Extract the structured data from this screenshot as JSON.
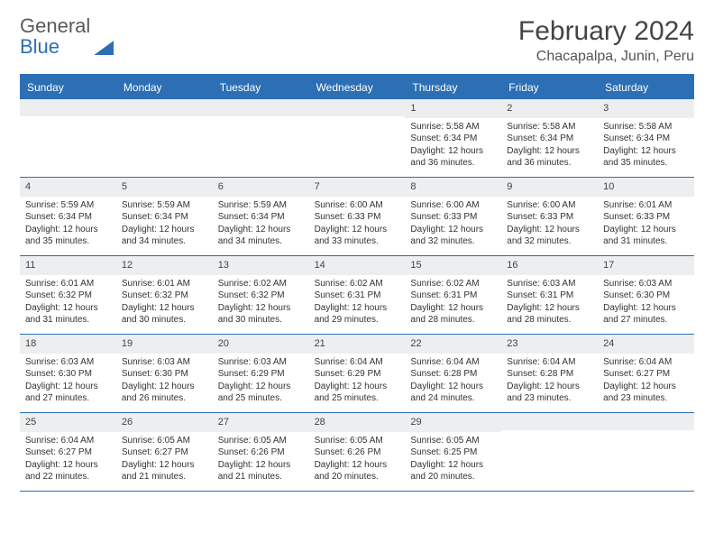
{
  "brand": {
    "part1": "General",
    "part2": "Blue"
  },
  "title": "February 2024",
  "location": "Chacapalpa, Junin, Peru",
  "colors": {
    "accent": "#2c6fb5",
    "header_bg": "#eceeef",
    "text": "#333333",
    "background": "#ffffff"
  },
  "layout": {
    "type": "calendar-table",
    "columns": 7,
    "rows": 5,
    "day_header_fontsize": 12,
    "daynum_fontsize": 11,
    "cell_fontsize": 10,
    "title_fontsize": 30,
    "location_fontsize": 16
  },
  "dayHeaders": [
    "Sunday",
    "Monday",
    "Tuesday",
    "Wednesday",
    "Thursday",
    "Friday",
    "Saturday"
  ],
  "weeks": [
    [
      {
        "day": "",
        "sunrise": "",
        "sunset": "",
        "daylight": ""
      },
      {
        "day": "",
        "sunrise": "",
        "sunset": "",
        "daylight": ""
      },
      {
        "day": "",
        "sunrise": "",
        "sunset": "",
        "daylight": ""
      },
      {
        "day": "",
        "sunrise": "",
        "sunset": "",
        "daylight": ""
      },
      {
        "day": "1",
        "sunrise": "Sunrise: 5:58 AM",
        "sunset": "Sunset: 6:34 PM",
        "daylight": "Daylight: 12 hours and 36 minutes."
      },
      {
        "day": "2",
        "sunrise": "Sunrise: 5:58 AM",
        "sunset": "Sunset: 6:34 PM",
        "daylight": "Daylight: 12 hours and 36 minutes."
      },
      {
        "day": "3",
        "sunrise": "Sunrise: 5:58 AM",
        "sunset": "Sunset: 6:34 PM",
        "daylight": "Daylight: 12 hours and 35 minutes."
      }
    ],
    [
      {
        "day": "4",
        "sunrise": "Sunrise: 5:59 AM",
        "sunset": "Sunset: 6:34 PM",
        "daylight": "Daylight: 12 hours and 35 minutes."
      },
      {
        "day": "5",
        "sunrise": "Sunrise: 5:59 AM",
        "sunset": "Sunset: 6:34 PM",
        "daylight": "Daylight: 12 hours and 34 minutes."
      },
      {
        "day": "6",
        "sunrise": "Sunrise: 5:59 AM",
        "sunset": "Sunset: 6:34 PM",
        "daylight": "Daylight: 12 hours and 34 minutes."
      },
      {
        "day": "7",
        "sunrise": "Sunrise: 6:00 AM",
        "sunset": "Sunset: 6:33 PM",
        "daylight": "Daylight: 12 hours and 33 minutes."
      },
      {
        "day": "8",
        "sunrise": "Sunrise: 6:00 AM",
        "sunset": "Sunset: 6:33 PM",
        "daylight": "Daylight: 12 hours and 32 minutes."
      },
      {
        "day": "9",
        "sunrise": "Sunrise: 6:00 AM",
        "sunset": "Sunset: 6:33 PM",
        "daylight": "Daylight: 12 hours and 32 minutes."
      },
      {
        "day": "10",
        "sunrise": "Sunrise: 6:01 AM",
        "sunset": "Sunset: 6:33 PM",
        "daylight": "Daylight: 12 hours and 31 minutes."
      }
    ],
    [
      {
        "day": "11",
        "sunrise": "Sunrise: 6:01 AM",
        "sunset": "Sunset: 6:32 PM",
        "daylight": "Daylight: 12 hours and 31 minutes."
      },
      {
        "day": "12",
        "sunrise": "Sunrise: 6:01 AM",
        "sunset": "Sunset: 6:32 PM",
        "daylight": "Daylight: 12 hours and 30 minutes."
      },
      {
        "day": "13",
        "sunrise": "Sunrise: 6:02 AM",
        "sunset": "Sunset: 6:32 PM",
        "daylight": "Daylight: 12 hours and 30 minutes."
      },
      {
        "day": "14",
        "sunrise": "Sunrise: 6:02 AM",
        "sunset": "Sunset: 6:31 PM",
        "daylight": "Daylight: 12 hours and 29 minutes."
      },
      {
        "day": "15",
        "sunrise": "Sunrise: 6:02 AM",
        "sunset": "Sunset: 6:31 PM",
        "daylight": "Daylight: 12 hours and 28 minutes."
      },
      {
        "day": "16",
        "sunrise": "Sunrise: 6:03 AM",
        "sunset": "Sunset: 6:31 PM",
        "daylight": "Daylight: 12 hours and 28 minutes."
      },
      {
        "day": "17",
        "sunrise": "Sunrise: 6:03 AM",
        "sunset": "Sunset: 6:30 PM",
        "daylight": "Daylight: 12 hours and 27 minutes."
      }
    ],
    [
      {
        "day": "18",
        "sunrise": "Sunrise: 6:03 AM",
        "sunset": "Sunset: 6:30 PM",
        "daylight": "Daylight: 12 hours and 27 minutes."
      },
      {
        "day": "19",
        "sunrise": "Sunrise: 6:03 AM",
        "sunset": "Sunset: 6:30 PM",
        "daylight": "Daylight: 12 hours and 26 minutes."
      },
      {
        "day": "20",
        "sunrise": "Sunrise: 6:03 AM",
        "sunset": "Sunset: 6:29 PM",
        "daylight": "Daylight: 12 hours and 25 minutes."
      },
      {
        "day": "21",
        "sunrise": "Sunrise: 6:04 AM",
        "sunset": "Sunset: 6:29 PM",
        "daylight": "Daylight: 12 hours and 25 minutes."
      },
      {
        "day": "22",
        "sunrise": "Sunrise: 6:04 AM",
        "sunset": "Sunset: 6:28 PM",
        "daylight": "Daylight: 12 hours and 24 minutes."
      },
      {
        "day": "23",
        "sunrise": "Sunrise: 6:04 AM",
        "sunset": "Sunset: 6:28 PM",
        "daylight": "Daylight: 12 hours and 23 minutes."
      },
      {
        "day": "24",
        "sunrise": "Sunrise: 6:04 AM",
        "sunset": "Sunset: 6:27 PM",
        "daylight": "Daylight: 12 hours and 23 minutes."
      }
    ],
    [
      {
        "day": "25",
        "sunrise": "Sunrise: 6:04 AM",
        "sunset": "Sunset: 6:27 PM",
        "daylight": "Daylight: 12 hours and 22 minutes."
      },
      {
        "day": "26",
        "sunrise": "Sunrise: 6:05 AM",
        "sunset": "Sunset: 6:27 PM",
        "daylight": "Daylight: 12 hours and 21 minutes."
      },
      {
        "day": "27",
        "sunrise": "Sunrise: 6:05 AM",
        "sunset": "Sunset: 6:26 PM",
        "daylight": "Daylight: 12 hours and 21 minutes."
      },
      {
        "day": "28",
        "sunrise": "Sunrise: 6:05 AM",
        "sunset": "Sunset: 6:26 PM",
        "daylight": "Daylight: 12 hours and 20 minutes."
      },
      {
        "day": "29",
        "sunrise": "Sunrise: 6:05 AM",
        "sunset": "Sunset: 6:25 PM",
        "daylight": "Daylight: 12 hours and 20 minutes."
      },
      {
        "day": "",
        "sunrise": "",
        "sunset": "",
        "daylight": ""
      },
      {
        "day": "",
        "sunrise": "",
        "sunset": "",
        "daylight": ""
      }
    ]
  ]
}
